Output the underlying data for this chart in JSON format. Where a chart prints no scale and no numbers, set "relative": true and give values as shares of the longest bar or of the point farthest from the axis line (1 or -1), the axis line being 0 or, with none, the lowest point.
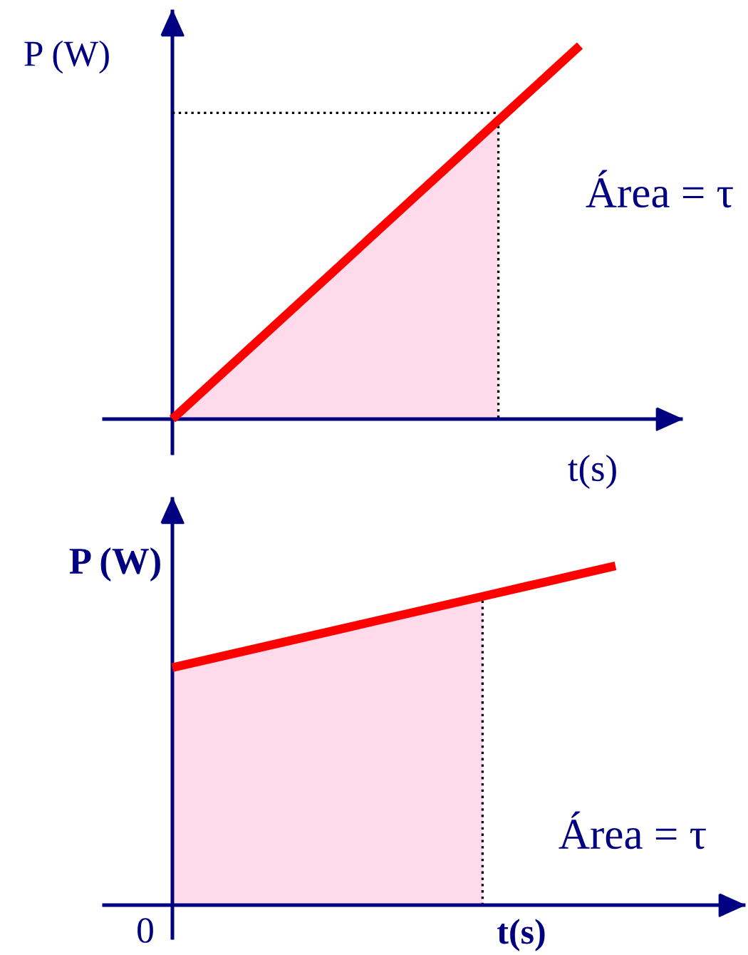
{
  "chart_data": [
    {
      "type": "line",
      "relative": true,
      "xlabel": "t(s)",
      "ylabel": "P (W)",
      "annotations": [
        "Área = τ"
      ],
      "categories": [
        null,
        null,
        null,
        null,
        null,
        null
      ],
      "series": [
        {
          "type": "area",
          "color": "#ffdaea",
          "line_style": "dotted",
          "values": [
            0,
            0.2,
            0.4,
            0.6,
            0.8,
            null
          ]
        },
        {
          "color": "#000000",
          "line_style": "dotted",
          "values": [
            0.82,
            0.82,
            0.82,
            0.82,
            0.82,
            null
          ]
        },
        {
          "color": "#ff0000",
          "line_style": "solid",
          "values": [
            0,
            0.2,
            0.4,
            0.6,
            0.8,
            1
          ]
        }
      ]
    },
    {
      "type": "line",
      "relative": true,
      "xlabel": "t(s)",
      "ylabel": "P (W)",
      "annotations": [
        "Área = τ",
        "0"
      ],
      "categories": [
        null,
        null,
        null,
        null,
        null,
        null,
        null,
        null,
        null,
        null,
        null
      ],
      "series": [
        {
          "type": "area",
          "color": "#ffdaea",
          "line_style": "dotted",
          "values": [
            0.7,
            0.73,
            0.76,
            0.79,
            0.82,
            0.85,
            0.88,
            0.91,
            null,
            null,
            null
          ]
        },
        {
          "color": "#ff0000",
          "line_style": "solid",
          "values": [
            0.7,
            0.73,
            0.76,
            0.79,
            0.82,
            0.85,
            0.88,
            0.91,
            0.94,
            0.97,
            1
          ]
        }
      ]
    }
  ]
}
